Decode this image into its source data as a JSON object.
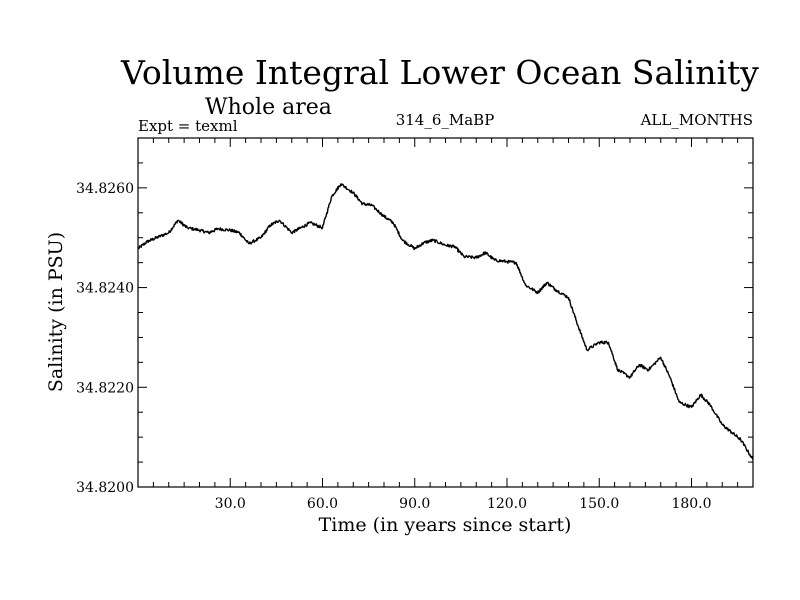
{
  "chart_data": {
    "type": "line",
    "title": "Volume Integral Lower Ocean Salinity",
    "subtitle": "Whole area",
    "expt_label": "Expt = texml",
    "run_label": "314_6_MaBP",
    "months_label": "ALL_MONTHS",
    "xlabel": "Time (in years since start)",
    "ylabel": "Salinity (in PSU)",
    "xlim": [
      0,
      200
    ],
    "ylim": [
      34.82,
      34.827
    ],
    "x_ticks": [
      30,
      60,
      90,
      120,
      150,
      180
    ],
    "x_tick_labels": [
      "30.0",
      "60.0",
      "90.0",
      "120.0",
      "150.0",
      "180.0"
    ],
    "y_ticks": [
      34.82,
      34.822,
      34.824,
      34.826
    ],
    "y_tick_labels": [
      "34.8200",
      "34.8220",
      "34.8240",
      "34.8260"
    ],
    "series": [
      {
        "name": "salinity",
        "x": [
          0,
          3,
          6,
          10,
          13,
          16,
          20,
          23,
          26,
          30,
          33,
          36,
          40,
          43,
          46,
          50,
          53,
          56,
          60,
          63,
          66,
          70,
          73,
          76,
          80,
          83,
          86,
          90,
          93,
          96,
          100,
          103,
          106,
          110,
          113,
          116,
          120,
          123,
          126,
          130,
          133,
          136,
          140,
          143,
          146,
          150,
          153,
          156,
          160,
          163,
          166,
          170,
          173,
          176,
          180,
          183,
          186,
          190,
          193,
          196,
          200
        ],
        "values": [
          34.82478,
          34.82492,
          34.825,
          34.8251,
          34.82535,
          34.8252,
          34.82515,
          34.8251,
          34.82518,
          34.82515,
          34.8251,
          34.82488,
          34.825,
          34.82525,
          34.82535,
          34.8251,
          34.8252,
          34.8253,
          34.8252,
          34.82583,
          34.82608,
          34.8259,
          34.82568,
          34.82565,
          34.82543,
          34.8253,
          34.82495,
          34.82478,
          34.8249,
          34.82495,
          34.82485,
          34.82482,
          34.82462,
          34.8246,
          34.8247,
          34.82455,
          34.82452,
          34.8245,
          34.82405,
          34.8239,
          34.8241,
          34.82395,
          34.8238,
          34.82325,
          34.82275,
          34.8229,
          34.8229,
          34.82235,
          34.8222,
          34.82245,
          34.82235,
          34.8226,
          34.8222,
          34.8217,
          34.8216,
          34.82185,
          34.82165,
          34.82125,
          34.8211,
          34.82095,
          34.82055
        ]
      }
    ]
  }
}
